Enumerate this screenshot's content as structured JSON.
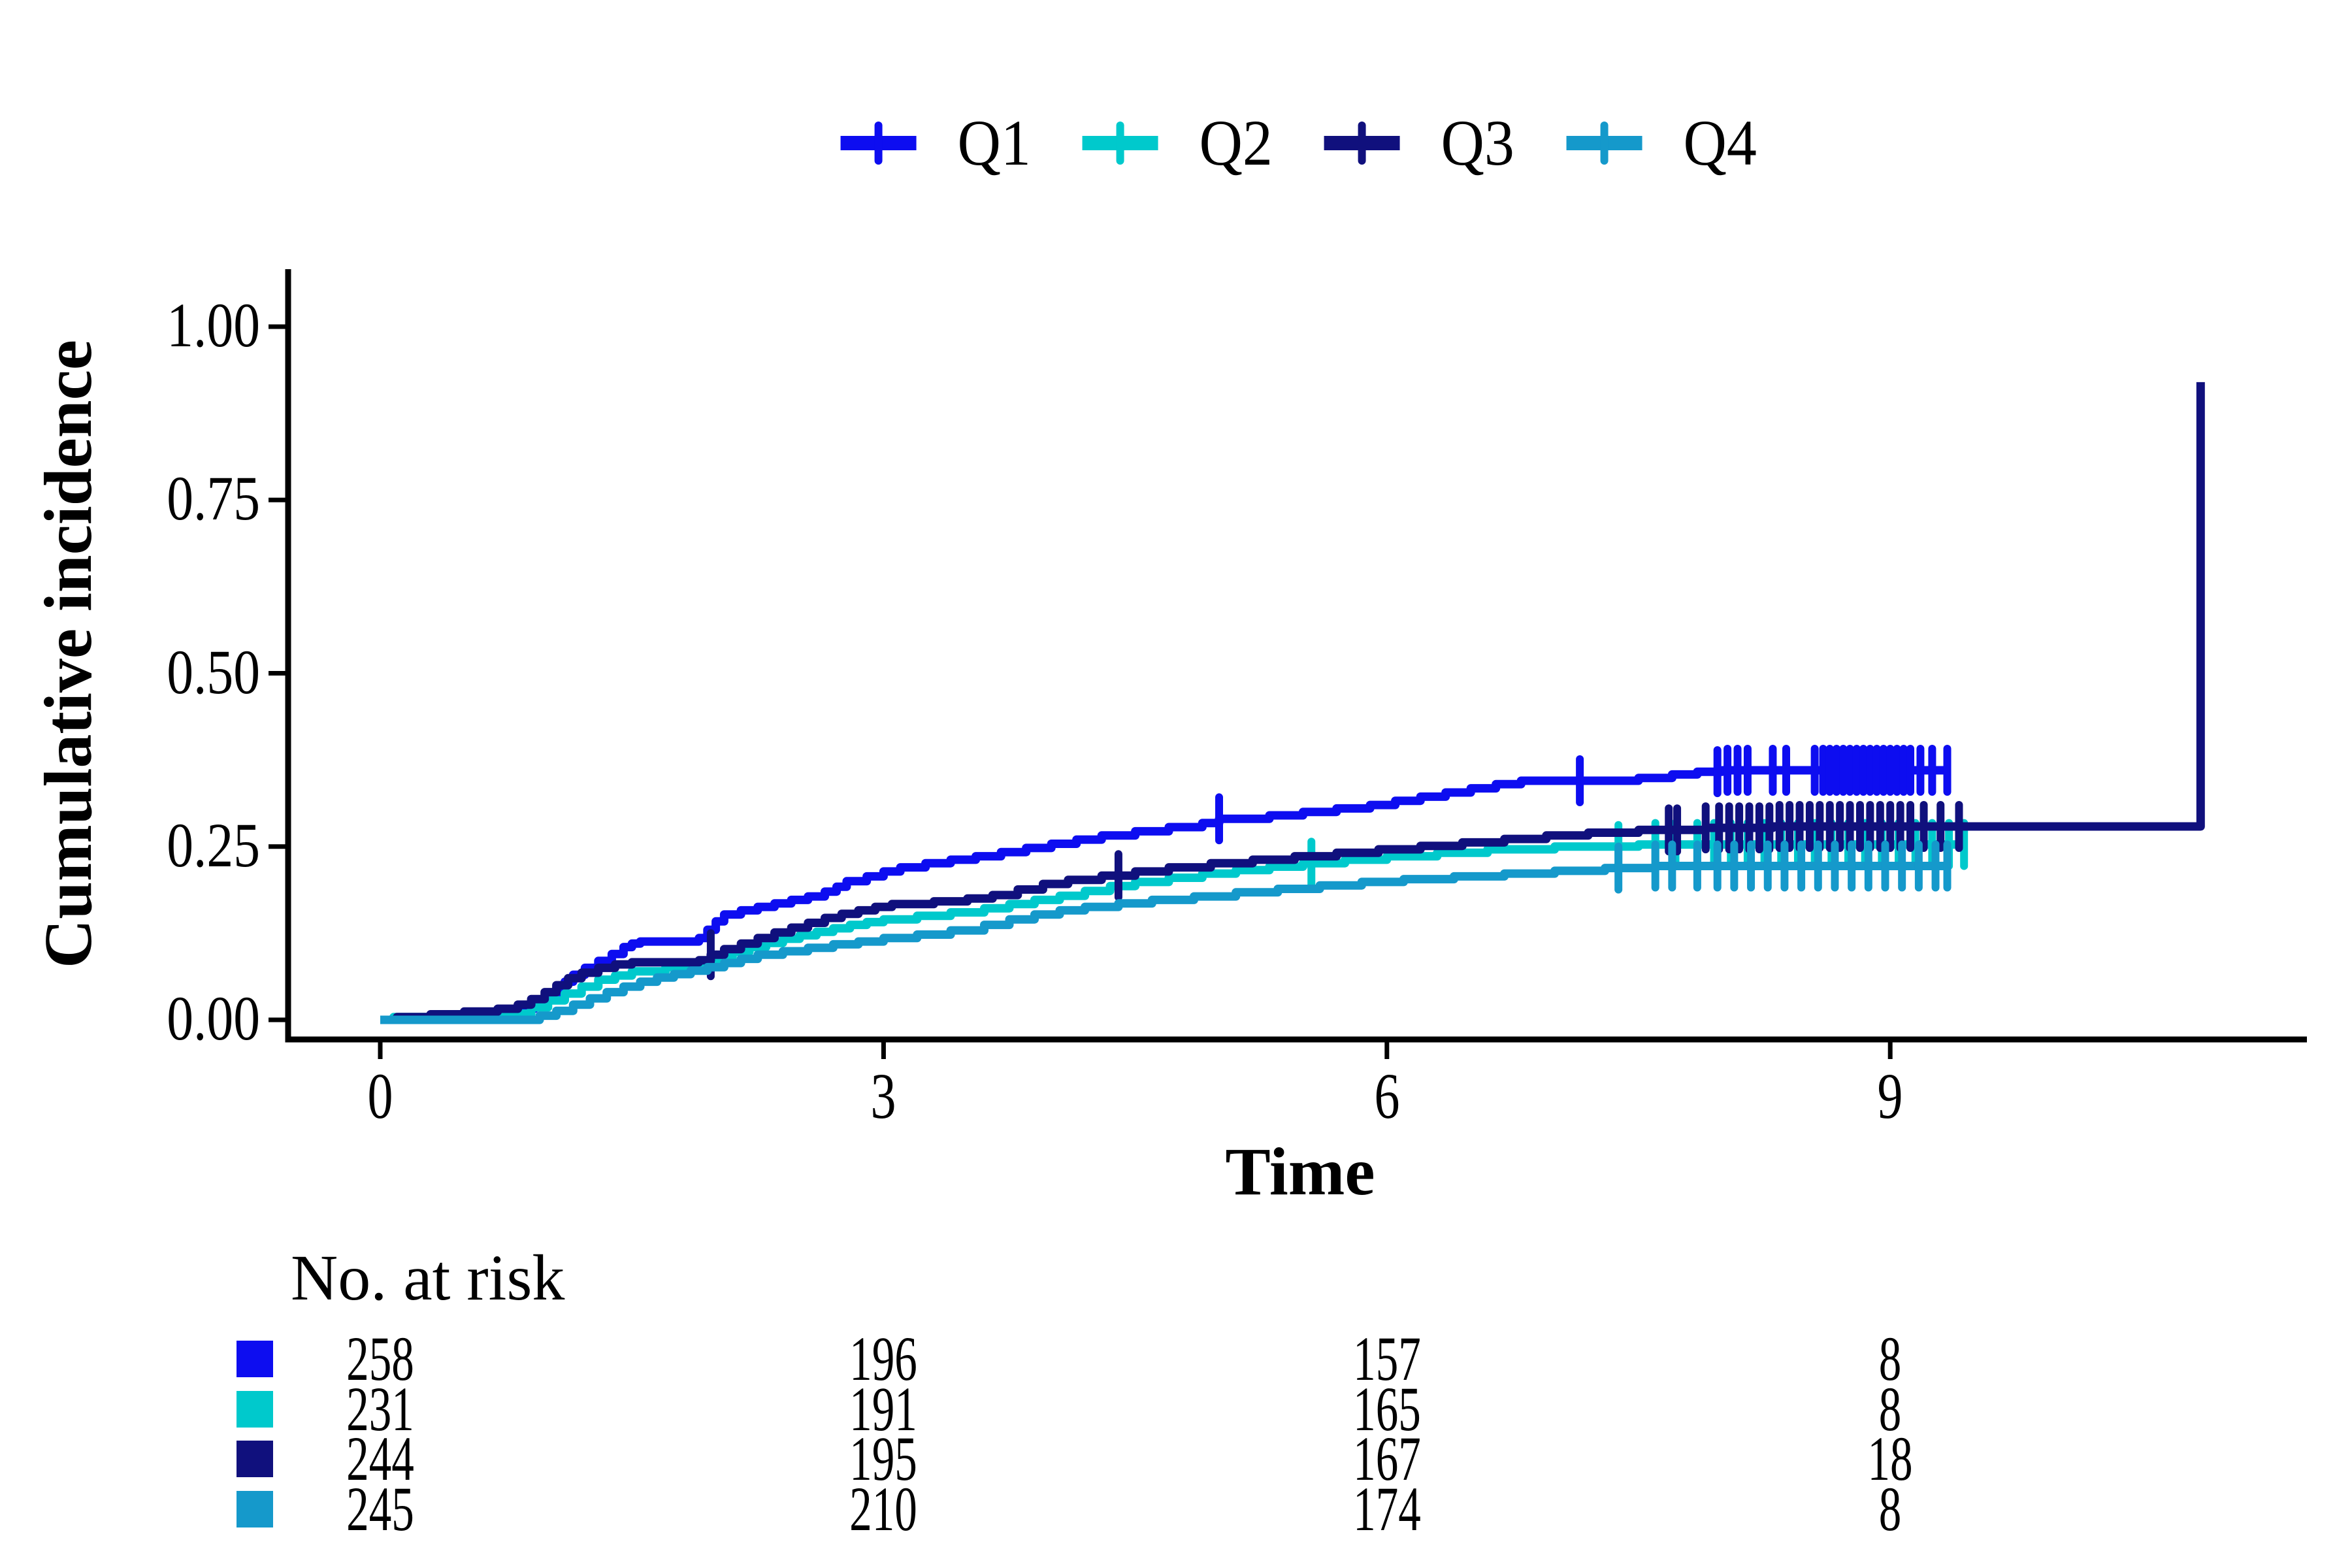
{
  "legend": {
    "items": [
      {
        "label": "Q1",
        "color": "#0D0DF0"
      },
      {
        "label": "Q2",
        "color": "#00C9CC"
      },
      {
        "label": "Q3",
        "color": "#10107D"
      },
      {
        "label": "Q4",
        "color": "#1599CB"
      }
    ]
  },
  "y_axis": {
    "title": "Cumulative incidence",
    "ticks": [
      "1.00",
      "0.75",
      "0.50",
      "0.25",
      "0.00"
    ],
    "tick_values": [
      1.0,
      0.75,
      0.5,
      0.25,
      0.0
    ]
  },
  "x_axis": {
    "title": "Time",
    "ticks": [
      "0",
      "3",
      "6",
      "9"
    ],
    "tick_values": [
      0,
      3,
      6,
      9
    ]
  },
  "risk_table": {
    "header": "No. at risk",
    "columns_time": [
      0,
      3,
      6,
      9
    ],
    "rows": [
      {
        "series": "Q1",
        "color": "#0D0DF0",
        "counts": [
          "258",
          "196",
          "157",
          "8"
        ]
      },
      {
        "series": "Q2",
        "color": "#00C9CC",
        "counts": [
          "231",
          "191",
          "165",
          "8"
        ]
      },
      {
        "series": "Q3",
        "color": "#10107D",
        "counts": [
          "244",
          "195",
          "167",
          "18"
        ]
      },
      {
        "series": "Q4",
        "color": "#1599CB",
        "counts": [
          "245",
          "210",
          "174",
          "8"
        ]
      }
    ]
  },
  "chart_data": {
    "type": "line",
    "step": true,
    "title": "",
    "xlabel": "Time",
    "ylabel": "Cumulative incidence",
    "xlim": [
      0,
      11.5
    ],
    "ylim": [
      0,
      1.0
    ],
    "x_ticks": [
      0,
      3,
      6,
      9
    ],
    "y_ticks": [
      0,
      0.25,
      0.5,
      0.75,
      1.0
    ],
    "grid": false,
    "legend_position": "top",
    "censor_mark": "plus",
    "series": [
      {
        "name": "Q1",
        "color": "#0D0DF0",
        "points": [
          [
            0,
            0
          ],
          [
            0.7,
            0
          ],
          [
            0.78,
            0.008
          ],
          [
            0.85,
            0.016
          ],
          [
            0.92,
            0.024
          ],
          [
            1.0,
            0.035
          ],
          [
            1.05,
            0.045
          ],
          [
            1.1,
            0.055
          ],
          [
            1.15,
            0.065
          ],
          [
            1.22,
            0.075
          ],
          [
            1.3,
            0.085
          ],
          [
            1.38,
            0.095
          ],
          [
            1.45,
            0.105
          ],
          [
            1.5,
            0.11
          ],
          [
            1.55,
            0.113
          ],
          [
            1.9,
            0.118
          ],
          [
            1.95,
            0.13
          ],
          [
            2.0,
            0.142
          ],
          [
            2.05,
            0.152
          ],
          [
            2.15,
            0.158
          ],
          [
            2.25,
            0.163
          ],
          [
            2.35,
            0.168
          ],
          [
            2.45,
            0.173
          ],
          [
            2.55,
            0.178
          ],
          [
            2.65,
            0.185
          ],
          [
            2.72,
            0.192
          ],
          [
            2.78,
            0.2
          ],
          [
            2.9,
            0.207
          ],
          [
            3.0,
            0.214
          ],
          [
            3.1,
            0.22
          ],
          [
            3.25,
            0.226
          ],
          [
            3.4,
            0.231
          ],
          [
            3.55,
            0.236
          ],
          [
            3.7,
            0.242
          ],
          [
            3.85,
            0.248
          ],
          [
            4.0,
            0.254
          ],
          [
            4.15,
            0.26
          ],
          [
            4.3,
            0.266
          ],
          [
            4.5,
            0.272
          ],
          [
            4.7,
            0.278
          ],
          [
            4.9,
            0.284
          ],
          [
            5.0,
            0.29
          ],
          [
            5.3,
            0.295
          ],
          [
            5.5,
            0.3
          ],
          [
            5.7,
            0.305
          ],
          [
            5.9,
            0.31
          ],
          [
            6.05,
            0.316
          ],
          [
            6.2,
            0.322
          ],
          [
            6.35,
            0.328
          ],
          [
            6.5,
            0.334
          ],
          [
            6.65,
            0.34
          ],
          [
            6.8,
            0.345
          ],
          [
            7.5,
            0.349
          ],
          [
            7.7,
            0.354
          ],
          [
            7.85,
            0.358
          ],
          [
            8.0,
            0.36
          ],
          [
            9.35,
            0.36
          ]
        ],
        "censor_times": [
          5.0,
          7.15,
          7.97,
          8.03,
          8.09,
          8.15,
          8.3,
          8.38,
          8.55,
          8.6,
          8.64,
          8.68,
          8.72,
          8.76,
          8.8,
          8.84,
          8.88,
          8.92,
          8.96,
          9.0,
          9.04,
          9.08,
          9.12,
          9.18,
          9.25,
          9.34
        ]
      },
      {
        "name": "Q2",
        "color": "#00C9CC",
        "points": [
          [
            0,
            0
          ],
          [
            0.08,
            0.004
          ],
          [
            0.8,
            0.009
          ],
          [
            0.9,
            0.018
          ],
          [
            1.0,
            0.028
          ],
          [
            1.1,
            0.038
          ],
          [
            1.2,
            0.048
          ],
          [
            1.3,
            0.058
          ],
          [
            1.4,
            0.064
          ],
          [
            1.5,
            0.07
          ],
          [
            1.7,
            0.076
          ],
          [
            1.9,
            0.082
          ],
          [
            2.0,
            0.09
          ],
          [
            2.1,
            0.098
          ],
          [
            2.2,
            0.105
          ],
          [
            2.3,
            0.111
          ],
          [
            2.4,
            0.117
          ],
          [
            2.5,
            0.122
          ],
          [
            2.6,
            0.127
          ],
          [
            2.7,
            0.132
          ],
          [
            2.8,
            0.137
          ],
          [
            2.9,
            0.141
          ],
          [
            3.0,
            0.145
          ],
          [
            3.2,
            0.15
          ],
          [
            3.4,
            0.155
          ],
          [
            3.6,
            0.161
          ],
          [
            3.75,
            0.167
          ],
          [
            3.9,
            0.173
          ],
          [
            4.05,
            0.179
          ],
          [
            4.2,
            0.186
          ],
          [
            4.35,
            0.193
          ],
          [
            4.5,
            0.199
          ],
          [
            4.7,
            0.205
          ],
          [
            4.9,
            0.211
          ],
          [
            5.1,
            0.216
          ],
          [
            5.3,
            0.221
          ],
          [
            5.5,
            0.226
          ],
          [
            5.75,
            0.231
          ],
          [
            6.0,
            0.236
          ],
          [
            6.3,
            0.241
          ],
          [
            6.6,
            0.246
          ],
          [
            7.0,
            0.25
          ],
          [
            7.5,
            0.253
          ],
          [
            9.45,
            0.253
          ]
        ],
        "censor_times": [
          5.55,
          7.38,
          7.6,
          7.72,
          7.85,
          7.95,
          8.05,
          8.15,
          8.25,
          8.35,
          8.45,
          8.55,
          8.65,
          8.75,
          8.85,
          8.95,
          9.05,
          9.15,
          9.25,
          9.35,
          9.44
        ]
      },
      {
        "name": "Q3",
        "color": "#10107D",
        "points": [
          [
            0,
            0
          ],
          [
            0.1,
            0.004
          ],
          [
            0.3,
            0.008
          ],
          [
            0.5,
            0.012
          ],
          [
            0.7,
            0.016
          ],
          [
            0.82,
            0.022
          ],
          [
            0.9,
            0.03
          ],
          [
            0.98,
            0.04
          ],
          [
            1.05,
            0.05
          ],
          [
            1.12,
            0.06
          ],
          [
            1.2,
            0.068
          ],
          [
            1.3,
            0.075
          ],
          [
            1.4,
            0.08
          ],
          [
            1.5,
            0.083
          ],
          [
            1.9,
            0.086
          ],
          [
            1.97,
            0.094
          ],
          [
            2.05,
            0.102
          ],
          [
            2.15,
            0.11
          ],
          [
            2.25,
            0.118
          ],
          [
            2.35,
            0.126
          ],
          [
            2.45,
            0.133
          ],
          [
            2.55,
            0.14
          ],
          [
            2.65,
            0.147
          ],
          [
            2.75,
            0.153
          ],
          [
            2.85,
            0.158
          ],
          [
            2.95,
            0.163
          ],
          [
            3.05,
            0.167
          ],
          [
            3.3,
            0.171
          ],
          [
            3.5,
            0.175
          ],
          [
            3.65,
            0.18
          ],
          [
            3.8,
            0.188
          ],
          [
            3.95,
            0.196
          ],
          [
            4.1,
            0.202
          ],
          [
            4.3,
            0.208
          ],
          [
            4.5,
            0.214
          ],
          [
            4.7,
            0.22
          ],
          [
            4.95,
            0.226
          ],
          [
            5.2,
            0.231
          ],
          [
            5.45,
            0.236
          ],
          [
            5.7,
            0.241
          ],
          [
            5.95,
            0.246
          ],
          [
            6.2,
            0.251
          ],
          [
            6.45,
            0.256
          ],
          [
            6.7,
            0.261
          ],
          [
            6.95,
            0.266
          ],
          [
            7.2,
            0.27
          ],
          [
            7.5,
            0.274
          ],
          [
            7.9,
            0.277
          ],
          [
            8.3,
            0.279
          ],
          [
            10.85,
            0.279
          ],
          [
            10.85,
            0.92
          ]
        ],
        "censor_times": [
          1.97,
          4.4,
          7.68,
          7.73,
          7.9,
          7.98,
          8.04,
          8.1,
          8.16,
          8.22,
          8.28,
          8.34,
          8.4,
          8.46,
          8.52,
          8.58,
          8.64,
          8.7,
          8.76,
          8.82,
          8.88,
          8.94,
          9.0,
          9.06,
          9.12,
          9.2,
          9.3,
          9.41
        ]
      },
      {
        "name": "Q4",
        "color": "#1599CB",
        "points": [
          [
            0,
            0
          ],
          [
            0.85,
            0
          ],
          [
            0.95,
            0.006
          ],
          [
            1.05,
            0.013
          ],
          [
            1.15,
            0.022
          ],
          [
            1.25,
            0.031
          ],
          [
            1.35,
            0.04
          ],
          [
            1.45,
            0.048
          ],
          [
            1.55,
            0.055
          ],
          [
            1.65,
            0.061
          ],
          [
            1.75,
            0.066
          ],
          [
            1.85,
            0.071
          ],
          [
            1.95,
            0.076
          ],
          [
            2.05,
            0.082
          ],
          [
            2.15,
            0.088
          ],
          [
            2.25,
            0.094
          ],
          [
            2.4,
            0.099
          ],
          [
            2.55,
            0.104
          ],
          [
            2.7,
            0.109
          ],
          [
            2.85,
            0.113
          ],
          [
            3.0,
            0.118
          ],
          [
            3.2,
            0.123
          ],
          [
            3.4,
            0.129
          ],
          [
            3.6,
            0.137
          ],
          [
            3.75,
            0.145
          ],
          [
            3.9,
            0.152
          ],
          [
            4.05,
            0.158
          ],
          [
            4.2,
            0.163
          ],
          [
            4.4,
            0.168
          ],
          [
            4.6,
            0.173
          ],
          [
            4.85,
            0.178
          ],
          [
            5.1,
            0.184
          ],
          [
            5.35,
            0.189
          ],
          [
            5.6,
            0.194
          ],
          [
            5.85,
            0.199
          ],
          [
            6.1,
            0.203
          ],
          [
            6.4,
            0.207
          ],
          [
            6.7,
            0.211
          ],
          [
            7.0,
            0.215
          ],
          [
            7.3,
            0.219
          ],
          [
            7.6,
            0.222
          ],
          [
            9.34,
            0.222
          ]
        ],
        "censor_times": [
          7.38,
          7.6,
          7.7,
          7.85,
          7.97,
          8.07,
          8.17,
          8.27,
          8.37,
          8.47,
          8.57,
          8.67,
          8.77,
          8.87,
          8.97,
          9.07,
          9.17,
          9.27,
          9.34
        ]
      }
    ]
  }
}
